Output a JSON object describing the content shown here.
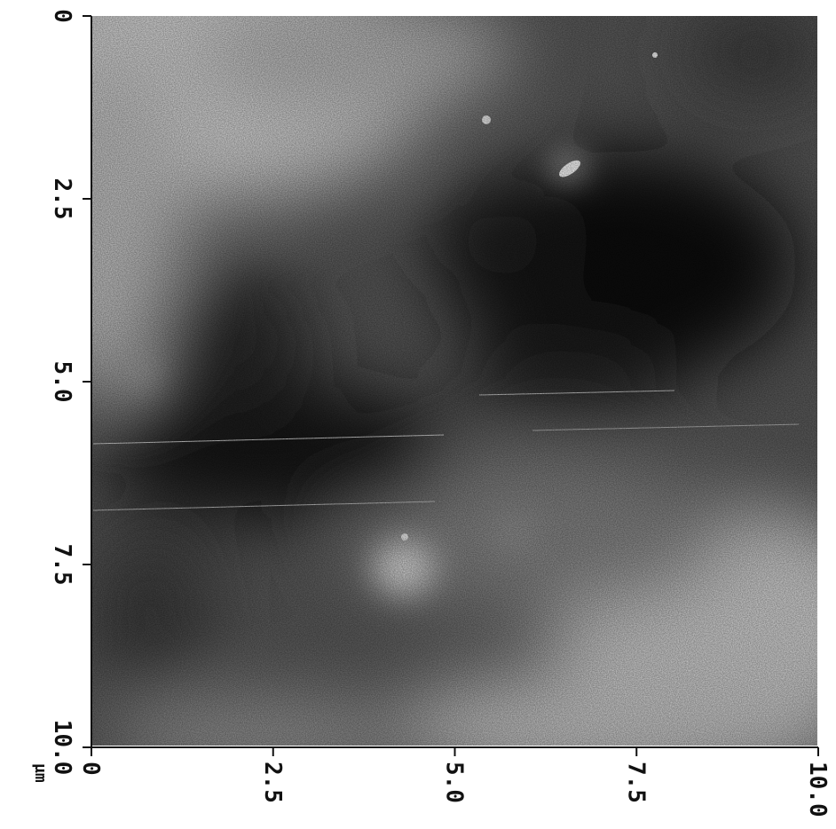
{
  "image": {
    "kind": "afm-height-map",
    "colors": {
      "dark": "#0a0a0a",
      "mid": "#6e6e6e",
      "light": "#dcdcdc",
      "paper": "#ffffff"
    }
  },
  "axes": {
    "left_ticks": [
      "0",
      "2.5",
      "5.0",
      "7.5",
      "10.0"
    ],
    "bottom_ticks": [
      "0",
      "2.5",
      "5.0",
      "7.5",
      "10.0"
    ],
    "range": [
      0,
      10
    ],
    "unit": "µm"
  }
}
